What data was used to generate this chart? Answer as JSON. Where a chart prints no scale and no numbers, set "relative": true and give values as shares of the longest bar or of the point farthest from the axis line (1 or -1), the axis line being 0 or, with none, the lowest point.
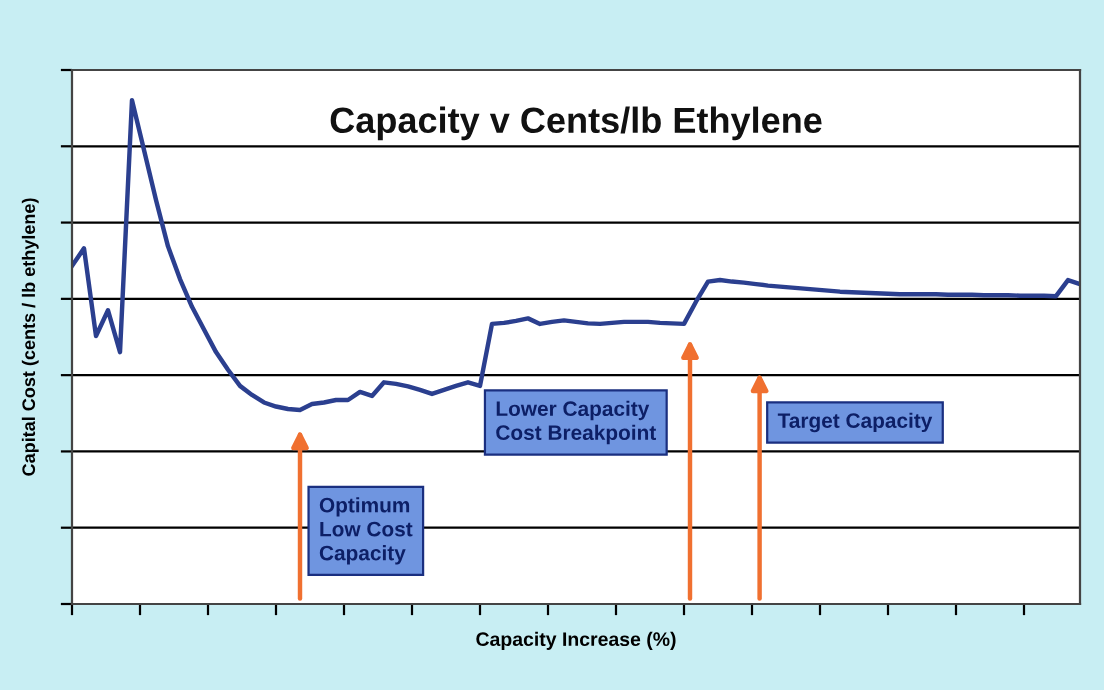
{
  "chart_data": {
    "type": "line",
    "relative": true,
    "title": "Capacity v Cents/lb Ethylene",
    "xlabel": "Capacity Increase (%)",
    "ylabel": "Capital Cost (cents / lb ethylene)",
    "categories": [
      null,
      null,
      null,
      null,
      null,
      null,
      null,
      null,
      null,
      null,
      null,
      null,
      null,
      null,
      null,
      null,
      null,
      null,
      null,
      null,
      null,
      null,
      null,
      null,
      null,
      null,
      null,
      null,
      null,
      null,
      null,
      null,
      null,
      null,
      null,
      null,
      null,
      null,
      null,
      null,
      null,
      null,
      null,
      null,
      null,
      null,
      null,
      null,
      null,
      null,
      null,
      null,
      null,
      null,
      null,
      null,
      null,
      null,
      null,
      null,
      null,
      null,
      null,
      null,
      null,
      null,
      null,
      null,
      null,
      null,
      null,
      null,
      null,
      null,
      null,
      null,
      null,
      null,
      null,
      null,
      null,
      null,
      null,
      null,
      null
    ],
    "series": [
      {
        "color": "#2b3f8f",
        "values": [
          0.671,
          0.706,
          0.532,
          0.583,
          0.5,
          1.0,
          0.901,
          0.802,
          0.71,
          0.645,
          0.59,
          0.545,
          0.5,
          0.465,
          0.433,
          0.415,
          0.4,
          0.392,
          0.387,
          0.385,
          0.397,
          0.4,
          0.405,
          0.405,
          0.421,
          0.413,
          0.44,
          0.437,
          0.432,
          0.425,
          0.417,
          0.425,
          0.433,
          0.44,
          0.433,
          0.556,
          0.558,
          0.562,
          0.567,
          0.556,
          0.56,
          0.563,
          0.56,
          0.557,
          0.556,
          0.558,
          0.56,
          0.56,
          0.56,
          0.558,
          0.557,
          0.556,
          0.6,
          0.64,
          0.643,
          0.64,
          0.638,
          0.635,
          0.632,
          0.63,
          0.628,
          0.626,
          0.624,
          0.622,
          0.62,
          0.619,
          0.618,
          0.617,
          0.616,
          0.615,
          0.615,
          0.615,
          0.615,
          0.614,
          0.614,
          0.614,
          0.613,
          0.613,
          0.613,
          0.612,
          0.612,
          0.612,
          0.611,
          0.643,
          0.635
        ]
      }
    ],
    "annotations": [
      "Optimum\nLow Cost\nCapacity",
      "Lower Capacity\nCost Breakpoint",
      "Target Capacity"
    ],
    "grid": "y",
    "legend": false,
    "marker": "none",
    "line_style": "solid"
  }
}
